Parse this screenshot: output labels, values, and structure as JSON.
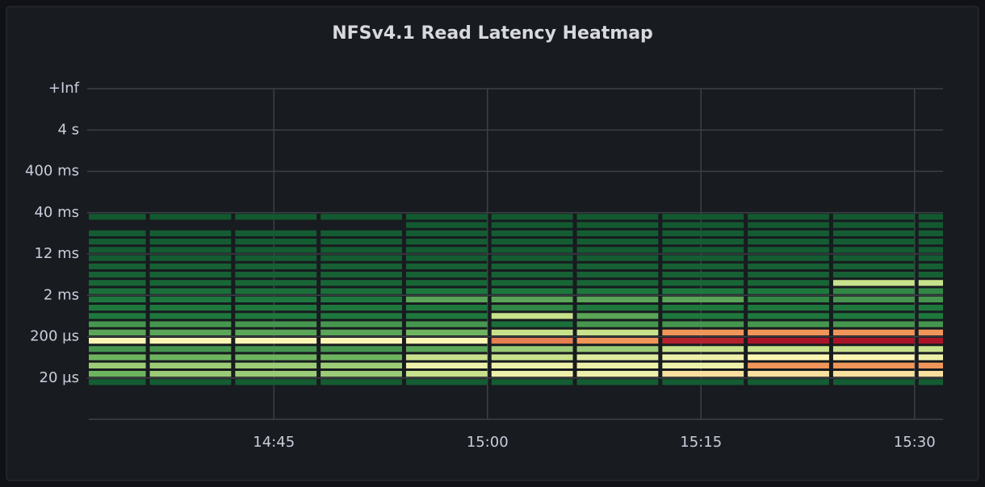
{
  "chart_data": {
    "type": "heatmap",
    "title": "NFSv4.1 Read Latency Heatmap",
    "x_bins": [
      32,
      36,
      42,
      48,
      54,
      60,
      66,
      72,
      78,
      84,
      90,
      92
    ],
    "y_bins": [
      0,
      1,
      2,
      3,
      4,
      5,
      6,
      7,
      8,
      9,
      10,
      11,
      12,
      13,
      14,
      15,
      16,
      17,
      18,
      19,
      20,
      21
    ],
    "xlim": [
      32,
      92
    ],
    "ylim": [
      -4,
      36
    ],
    "xticks": [
      {
        "value": 45,
        "label": "14:45"
      },
      {
        "value": 60,
        "label": "15:00"
      },
      {
        "value": 75,
        "label": "15:15"
      },
      {
        "value": 90,
        "label": "15:30"
      }
    ],
    "yticks": [
      {
        "value": 1,
        "label": "20 µs"
      },
      {
        "value": 6,
        "label": "200 µs"
      },
      {
        "value": 11,
        "label": "2 ms"
      },
      {
        "value": 16,
        "label": "12 ms"
      },
      {
        "value": 21,
        "label": "40 ms"
      },
      {
        "value": 26,
        "label": "400 ms"
      },
      {
        "value": 31,
        "label": "4 s"
      },
      {
        "value": 36,
        "label": "+Inf"
      }
    ],
    "grid": true,
    "values": [
      [
        10,
        10,
        10,
        10,
        10,
        10,
        10,
        10,
        10,
        10,
        10
      ],
      [
        45,
        50,
        50,
        50,
        55,
        60,
        60,
        65,
        65,
        65,
        65
      ],
      [
        50,
        50,
        50,
        50,
        60,
        60,
        60,
        60,
        75,
        75,
        75
      ],
      [
        45,
        45,
        45,
        45,
        55,
        55,
        58,
        60,
        62,
        62,
        60
      ],
      [
        35,
        35,
        35,
        35,
        40,
        50,
        50,
        55,
        55,
        55,
        55
      ],
      [
        62,
        62,
        62,
        62,
        62,
        78,
        75,
        90,
        92,
        92,
        92
      ],
      [
        40,
        40,
        40,
        40,
        45,
        55,
        55,
        75,
        75,
        75,
        75
      ],
      [
        35,
        35,
        35,
        35,
        35,
        20,
        35,
        35,
        35,
        35,
        35
      ],
      [
        25,
        25,
        25,
        25,
        25,
        55,
        40,
        25,
        25,
        25,
        25
      ],
      [
        25,
        25,
        25,
        25,
        25,
        30,
        25,
        25,
        25,
        25,
        25
      ],
      [
        25,
        25,
        25,
        25,
        40,
        40,
        40,
        40,
        30,
        35,
        35
      ],
      [
        20,
        20,
        20,
        20,
        25,
        25,
        25,
        25,
        25,
        30,
        30
      ],
      [
        15,
        15,
        15,
        15,
        15,
        15,
        15,
        15,
        15,
        55,
        55
      ],
      [
        12,
        12,
        12,
        12,
        12,
        12,
        12,
        12,
        12,
        12,
        12
      ],
      [
        12,
        12,
        12,
        12,
        12,
        12,
        12,
        12,
        12,
        12,
        12
      ],
      [
        10,
        10,
        10,
        10,
        10,
        10,
        10,
        10,
        10,
        10,
        10
      ],
      [
        10,
        10,
        10,
        10,
        10,
        10,
        10,
        10,
        10,
        10,
        10
      ],
      [
        10,
        10,
        10,
        10,
        10,
        10,
        10,
        10,
        10,
        10,
        10
      ],
      [
        10,
        10,
        10,
        10,
        10,
        10,
        10,
        10,
        10,
        10,
        10
      ],
      [
        null,
        null,
        null,
        null,
        8,
        8,
        8,
        8,
        8,
        8,
        8
      ],
      [
        8,
        8,
        8,
        8,
        8,
        8,
        8,
        8,
        8,
        8,
        8
      ]
    ]
  }
}
